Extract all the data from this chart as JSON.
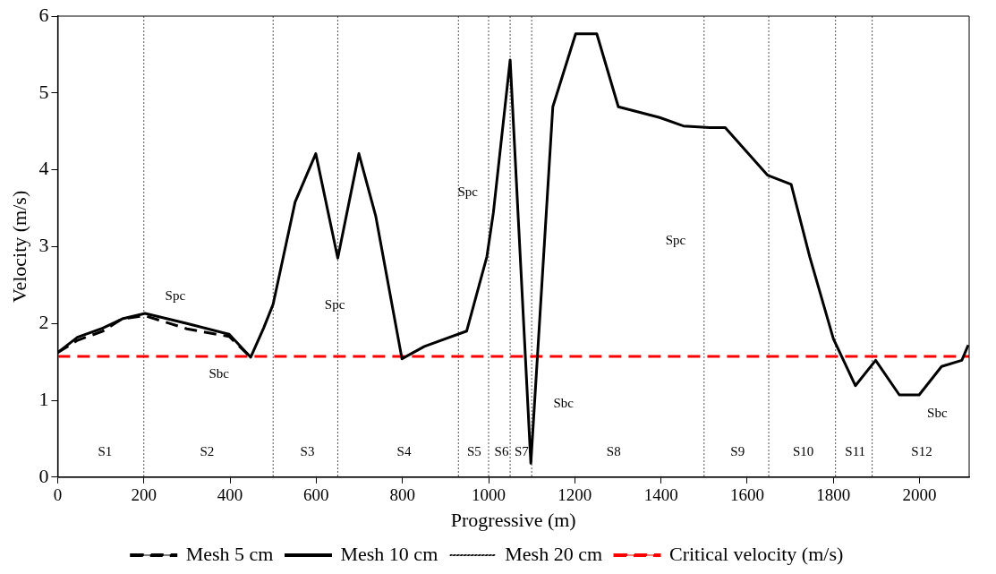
{
  "chart_data": {
    "type": "line",
    "xlabel": "Progressive (m)",
    "ylabel": "Velocity (m/s)",
    "xlim": [
      0,
      2115
    ],
    "ylim": [
      0,
      6
    ],
    "xticks": [
      0,
      200,
      400,
      600,
      800,
      1000,
      1200,
      1400,
      1600,
      1800,
      2000
    ],
    "yticks": [
      0,
      1,
      2,
      3,
      4,
      5,
      6
    ],
    "grid": false,
    "legend": "bottom",
    "marker": "none",
    "x": [
      0,
      46,
      105,
      150,
      203,
      300,
      398,
      448,
      478,
      500,
      551,
      599,
      650,
      699,
      738,
      799,
      851,
      949,
      996,
      1011,
      1050,
      1098,
      1149,
      1202,
      1251,
      1301,
      1397,
      1452,
      1513,
      1549,
      1647,
      1702,
      1745,
      1800,
      1851,
      1898,
      1953,
      1999,
      2051,
      2098,
      2113
    ],
    "series": [
      {
        "name": "Mesh 5 cm",
        "color": "#000000",
        "line_style": "dashed",
        "values": [
          1.62,
          1.78,
          1.9,
          2.06,
          2.1,
          1.93,
          1.83,
          1.56,
          null,
          null,
          null,
          null,
          null,
          null,
          null,
          null,
          null,
          null,
          null,
          null,
          null,
          null,
          null,
          null,
          null,
          null,
          null,
          null,
          null,
          null,
          null,
          null,
          null,
          null,
          null,
          null,
          null,
          null,
          null,
          null,
          null
        ]
      },
      {
        "name": "Mesh 10 cm",
        "color": "#000000",
        "line_style": "solid",
        "values": [
          1.62,
          1.82,
          1.94,
          2.06,
          2.13,
          2.0,
          1.86,
          1.56,
          1.94,
          2.25,
          3.58,
          4.21,
          2.85,
          4.21,
          3.4,
          1.54,
          1.7,
          1.9,
          2.87,
          3.44,
          5.43,
          0.18,
          4.82,
          5.77,
          5.77,
          4.82,
          4.68,
          4.57,
          4.55,
          4.55,
          3.93,
          3.81,
          2.87,
          1.8,
          1.19,
          1.52,
          1.07,
          1.07,
          1.44,
          1.52,
          1.72
        ]
      },
      {
        "name": "Mesh 20 cm",
        "color": "#000000",
        "line_style": "dotted",
        "values": [
          null,
          null,
          null,
          null,
          null,
          null,
          null,
          null,
          null,
          null,
          null,
          null,
          null,
          null,
          null,
          null,
          null,
          null,
          null,
          null,
          null,
          null,
          null,
          null,
          null,
          null,
          null,
          null,
          null,
          null,
          null,
          null,
          null,
          null,
          null,
          null,
          null,
          null,
          null,
          null,
          null
        ]
      }
    ],
    "ref_lines": [
      {
        "axis": "y",
        "value": 1.57,
        "label": "Critical velocity (m/s)",
        "color": "#ff0000",
        "line_style": "dashed"
      },
      {
        "axis": "x",
        "value": 200,
        "color": "#555555",
        "line_style": "dotted"
      },
      {
        "axis": "x",
        "value": 500,
        "color": "#555555",
        "line_style": "dotted"
      },
      {
        "axis": "x",
        "value": 650,
        "color": "#555555",
        "line_style": "dotted"
      },
      {
        "axis": "x",
        "value": 930,
        "color": "#555555",
        "line_style": "dotted"
      },
      {
        "axis": "x",
        "value": 1000,
        "color": "#555555",
        "line_style": "dotted"
      },
      {
        "axis": "x",
        "value": 1050,
        "color": "#555555",
        "line_style": "dotted"
      },
      {
        "axis": "x",
        "value": 1100,
        "color": "#555555",
        "line_style": "dotted"
      },
      {
        "axis": "x",
        "value": 1500,
        "color": "#555555",
        "line_style": "dotted"
      },
      {
        "axis": "x",
        "value": 1650,
        "color": "#555555",
        "line_style": "dotted"
      },
      {
        "axis": "x",
        "value": 1805,
        "color": "#555555",
        "line_style": "dotted"
      },
      {
        "axis": "x",
        "value": 1890,
        "color": "#555555",
        "line_style": "dotted"
      }
    ],
    "annotations": [
      "S1",
      "S2",
      "S3",
      "S4",
      "S5",
      "S6",
      "S7",
      "S8",
      "S9",
      "S10",
      "S11",
      "S12",
      "Spc",
      "Sbc",
      "Spc",
      "Spc",
      "Sbc",
      "Spc",
      "Sbc"
    ]
  }
}
